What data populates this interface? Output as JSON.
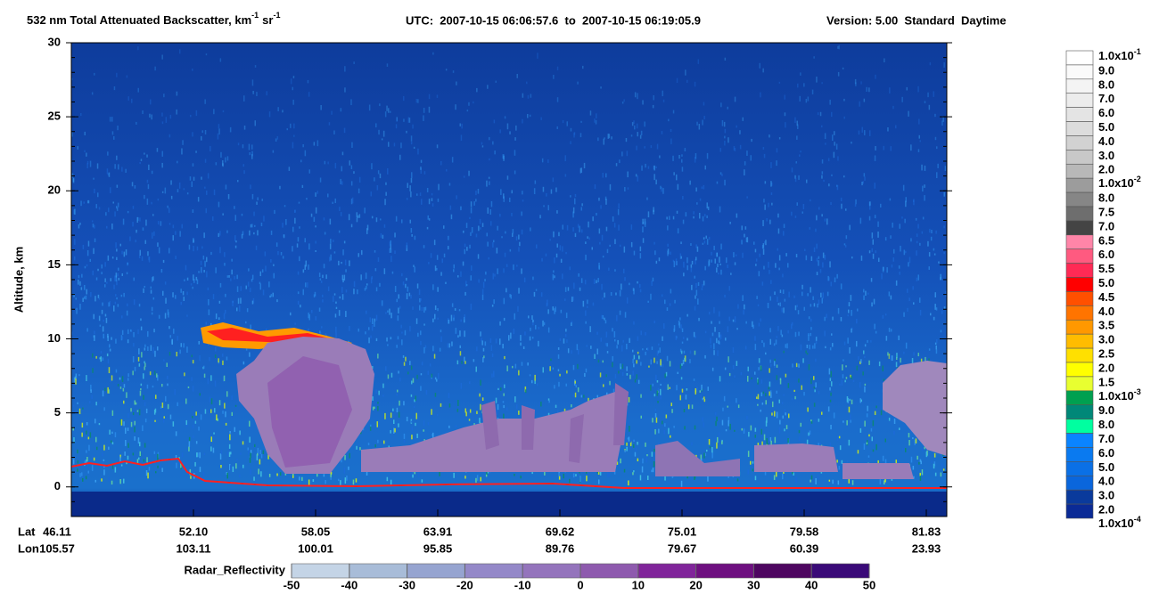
{
  "chart_data": {
    "type": "curtain",
    "title_parts": [
      "532 nm Total Attenuated Backscatter, km",
      "-1",
      "sr",
      "-1"
    ],
    "time_range": "UTC:  2007-10-15 06:06:57.6  to  2007-10-15 06:19:05.9",
    "version": "Version: 5.00  Standard  Daytime",
    "y_label": "Altitude, km",
    "ylim": [
      -2,
      30
    ],
    "yticks": [
      0,
      5,
      10,
      15,
      20,
      25,
      30
    ],
    "lat_title": "Lat",
    "lon_title": "Lon",
    "lat": [
      "46.11",
      "52.10",
      "58.05",
      "63.91",
      "69.62",
      "75.01",
      "79.58",
      "81.83"
    ],
    "lon": [
      "105.57",
      "103.11",
      "100.01",
      "95.85",
      "89.76",
      "79.67",
      "60.39",
      "23.93"
    ],
    "colorbar": {
      "labels": [
        {
          "base": "1.0x10",
          "exp": "-1"
        },
        "9.0",
        "8.0",
        "7.0",
        "6.0",
        "5.0",
        "4.0",
        "3.0",
        "2.0",
        {
          "base": "1.0x10",
          "exp": "-2"
        },
        "8.0",
        "7.5",
        "7.0",
        "6.5",
        "6.0",
        "5.5",
        "5.0",
        "4.5",
        "4.0",
        "3.5",
        "3.0",
        "2.5",
        "2.0",
        "1.5",
        {
          "base": "1.0x10",
          "exp": "-3"
        },
        "9.0",
        "8.0",
        "7.0",
        "6.0",
        "5.0",
        "4.0",
        "3.0",
        "2.0",
        {
          "base": "1.0x10",
          "exp": "-4"
        }
      ],
      "colors": [
        "#ffffff",
        "#fafafa",
        "#f4f4f4",
        "#ececec",
        "#e4e4e4",
        "#dcdcdc",
        "#d2d2d2",
        "#c8c8c8",
        "#b8b8b8",
        "#9c9c9c",
        "#868686",
        "#6e6e6e",
        "#444444",
        "#ff85a8",
        "#ff5a80",
        "#ff2a55",
        "#ff0000",
        "#ff5000",
        "#ff7400",
        "#ff9800",
        "#ffbc00",
        "#ffe000",
        "#ffff00",
        "#e8ff30",
        "#00a050",
        "#008878",
        "#00ffa0",
        "#0a84ff",
        "#0a7af0",
        "#0a70e6",
        "#0a66dc",
        "#0a3a9c",
        "#0a2a96"
      ]
    },
    "radar": {
      "label": "Radar_Reflectivity",
      "ticks": [
        -50,
        -40,
        -30,
        -20,
        -10,
        0,
        10,
        20,
        30,
        40,
        50
      ],
      "colors": [
        "#c4d4e6",
        "#a8bcd8",
        "#96a4d0",
        "#9488c8",
        "#9474bc",
        "#8e5aae",
        "#80249a",
        "#6e1080",
        "#4e0660",
        "#3a0a78"
      ]
    }
  }
}
